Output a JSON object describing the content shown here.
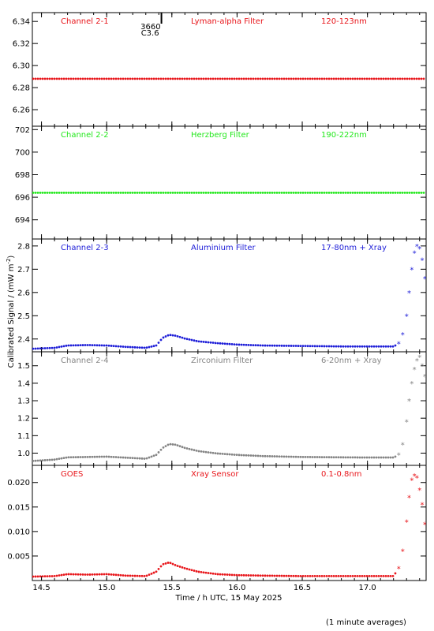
{
  "ylabel": "Calibrated Signal / (mW m",
  "ylabel_sup": "-2",
  "ylabel_end": ")",
  "xlabel": "Time / h UTC, 15 May 2025",
  "footnote": "(1 minute averages)",
  "flare_marker": {
    "label_top": "3660",
    "label_bottom": "C3.6",
    "time": 15.42
  },
  "chart_data": [
    {
      "type": "scatter",
      "panel": "Channel 2-1",
      "title": "Channel 2-1",
      "filter": "Lyman-alpha Filter",
      "band": "120-123nm",
      "color": "#e8161b",
      "xlim": [
        14.43,
        17.45
      ],
      "ylim": [
        6.245,
        6.348
      ],
      "yticks": [
        "6.26",
        "6.28",
        "6.30",
        "6.32",
        "6.34"
      ],
      "ytick_values": [
        6.26,
        6.28,
        6.3,
        6.32,
        6.34
      ],
      "points": [
        [
          14.43,
          6.288
        ],
        [
          15.0,
          6.288
        ],
        [
          15.5,
          6.288
        ],
        [
          16.0,
          6.288
        ],
        [
          16.5,
          6.288
        ],
        [
          17.0,
          6.288
        ],
        [
          17.45,
          6.288
        ]
      ]
    },
    {
      "type": "scatter",
      "panel": "Channel 2-2",
      "title": "Channel 2-2",
      "filter": "Herzberg Filter",
      "band": "190-222nm",
      "color": "#22e81b",
      "xlim": [
        14.43,
        17.45
      ],
      "ylim": [
        692.3,
        702.3
      ],
      "yticks": [
        "694",
        "696",
        "698",
        "700",
        "702"
      ],
      "ytick_values": [
        694,
        696,
        698,
        700,
        702
      ],
      "points": [
        [
          14.43,
          696.4
        ],
        [
          15.0,
          696.4
        ],
        [
          15.5,
          696.4
        ],
        [
          16.0,
          696.4
        ],
        [
          16.5,
          696.4
        ],
        [
          17.0,
          696.4
        ],
        [
          17.45,
          696.4
        ]
      ]
    },
    {
      "type": "scatter",
      "panel": "Channel 2-3",
      "title": "Channel 2-3",
      "filter": "Aluminium Filter",
      "band": "17-80nm + Xray",
      "color": "#1e1ed8",
      "xlim": [
        14.43,
        17.45
      ],
      "ylim": [
        2.345,
        2.83
      ],
      "yticks": [
        "2.4",
        "2.5",
        "2.6",
        "2.7",
        "2.8"
      ],
      "ytick_values": [
        2.4,
        2.5,
        2.6,
        2.7,
        2.8
      ],
      "points": [
        [
          14.43,
          2.358
        ],
        [
          14.6,
          2.362
        ],
        [
          14.7,
          2.372
        ],
        [
          14.85,
          2.374
        ],
        [
          15.0,
          2.372
        ],
        [
          15.15,
          2.366
        ],
        [
          15.3,
          2.362
        ],
        [
          15.38,
          2.372
        ],
        [
          15.43,
          2.405
        ],
        [
          15.48,
          2.418
        ],
        [
          15.53,
          2.414
        ],
        [
          15.6,
          2.402
        ],
        [
          15.7,
          2.39
        ],
        [
          15.85,
          2.382
        ],
        [
          16.0,
          2.376
        ],
        [
          16.2,
          2.372
        ],
        [
          16.5,
          2.37
        ],
        [
          16.8,
          2.368
        ],
        [
          17.0,
          2.368
        ],
        [
          17.2,
          2.368
        ],
        [
          17.24,
          2.38
        ],
        [
          17.27,
          2.42
        ],
        [
          17.3,
          2.5
        ],
        [
          17.32,
          2.6
        ],
        [
          17.34,
          2.7
        ],
        [
          17.36,
          2.77
        ],
        [
          17.38,
          2.8
        ],
        [
          17.4,
          2.79
        ],
        [
          17.42,
          2.74
        ],
        [
          17.44,
          2.66
        ]
      ]
    },
    {
      "type": "scatter",
      "panel": "Channel 2-4",
      "title": "Channel 2-4",
      "filter": "Zirconium Filter",
      "band": "6-20nm + Xray",
      "color": "#858585",
      "xlim": [
        14.43,
        17.45
      ],
      "ylim": [
        0.93,
        1.58
      ],
      "yticks": [
        "1.0",
        "1.1",
        "1.2",
        "1.3",
        "1.4",
        "1.5"
      ],
      "ytick_values": [
        1.0,
        1.1,
        1.2,
        1.3,
        1.4,
        1.5
      ],
      "points": [
        [
          14.43,
          0.955
        ],
        [
          14.6,
          0.963
        ],
        [
          14.7,
          0.976
        ],
        [
          14.85,
          0.978
        ],
        [
          15.0,
          0.98
        ],
        [
          15.15,
          0.974
        ],
        [
          15.3,
          0.968
        ],
        [
          15.38,
          0.99
        ],
        [
          15.43,
          1.03
        ],
        [
          15.48,
          1.052
        ],
        [
          15.53,
          1.048
        ],
        [
          15.6,
          1.03
        ],
        [
          15.7,
          1.012
        ],
        [
          15.85,
          0.998
        ],
        [
          16.0,
          0.99
        ],
        [
          16.2,
          0.983
        ],
        [
          16.5,
          0.978
        ],
        [
          16.8,
          0.976
        ],
        [
          17.0,
          0.975
        ],
        [
          17.2,
          0.975
        ],
        [
          17.24,
          0.99
        ],
        [
          17.27,
          1.05
        ],
        [
          17.3,
          1.18
        ],
        [
          17.32,
          1.3
        ],
        [
          17.34,
          1.4
        ],
        [
          17.36,
          1.48
        ],
        [
          17.38,
          1.53
        ],
        [
          17.4,
          1.55
        ],
        [
          17.42,
          1.5
        ],
        [
          17.44,
          1.44
        ]
      ]
    },
    {
      "type": "scatter",
      "panel": "GOES",
      "title": "GOES",
      "filter": "Xray Sensor",
      "band": "0.1-0.8nm",
      "color": "#e8161b",
      "xlim": [
        14.43,
        17.45
      ],
      "ylim": [
        0.0,
        0.0235
      ],
      "yticks": [
        "0.005",
        "0.010",
        "0.015",
        "0.020"
      ],
      "ytick_values": [
        0.005,
        0.01,
        0.015,
        0.02
      ],
      "xticks": [
        "14.5",
        "15.0",
        "15.5",
        "16.0",
        "16.5",
        "17.0"
      ],
      "xtick_values": [
        14.5,
        15.0,
        15.5,
        16.0,
        16.5,
        17.0
      ],
      "points": [
        [
          14.43,
          0.0008
        ],
        [
          14.6,
          0.0009
        ],
        [
          14.7,
          0.0013
        ],
        [
          14.85,
          0.0012
        ],
        [
          15.0,
          0.0013
        ],
        [
          15.15,
          0.001
        ],
        [
          15.3,
          0.0009
        ],
        [
          15.38,
          0.0018
        ],
        [
          15.43,
          0.0033
        ],
        [
          15.48,
          0.0037
        ],
        [
          15.53,
          0.0031
        ],
        [
          15.6,
          0.0025
        ],
        [
          15.7,
          0.0018
        ],
        [
          15.85,
          0.0013
        ],
        [
          16.0,
          0.0011
        ],
        [
          16.2,
          0.001
        ],
        [
          16.5,
          0.0009
        ],
        [
          16.8,
          0.0009
        ],
        [
          17.0,
          0.0009
        ],
        [
          17.2,
          0.0009
        ],
        [
          17.24,
          0.0025
        ],
        [
          17.27,
          0.006
        ],
        [
          17.3,
          0.012
        ],
        [
          17.32,
          0.017
        ],
        [
          17.34,
          0.0205
        ],
        [
          17.36,
          0.0214
        ],
        [
          17.38,
          0.021
        ],
        [
          17.4,
          0.0185
        ],
        [
          17.42,
          0.0155
        ],
        [
          17.44,
          0.0115
        ]
      ]
    }
  ]
}
